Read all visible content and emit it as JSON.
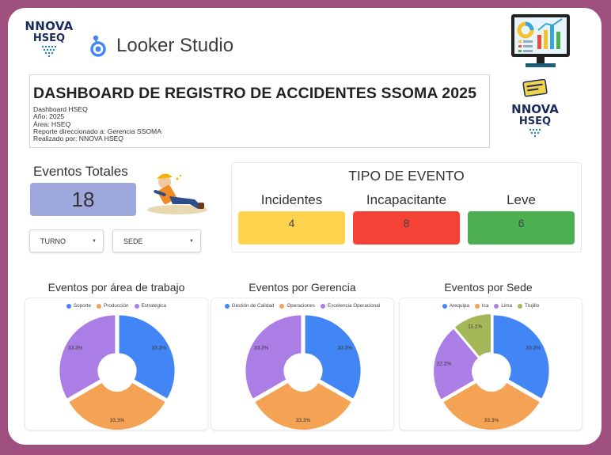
{
  "header": {
    "logo_small": {
      "line1": "NNOVA",
      "line2": "HSEQ"
    },
    "looker_label": "Looker Studio",
    "logo_big": {
      "line1": "NNOVA",
      "line2": "HSEQ"
    }
  },
  "title_box": {
    "title": "DASHBOARD DE REGISTRO DE ACCIDENTES SSOMA 2025",
    "lines": [
      "Dashboard HSEQ",
      "Año: 2025",
      "Área: HSEQ",
      "Reporte direccionado a: Gerencia SSOMA",
      "Realizado por: NNOVA HSEQ"
    ]
  },
  "eventos_totales": {
    "label": "Eventos Totales",
    "value": "18"
  },
  "filters": {
    "turno": "TURNO",
    "sede": "SEDE"
  },
  "tipo_evento": {
    "title": "TIPO DE EVENTO",
    "items": [
      {
        "label": "Incidentes",
        "value": "4",
        "color": "#fdd34d"
      },
      {
        "label": "Incapacitante",
        "value": "8",
        "color": "#f44336"
      },
      {
        "label": "Leve",
        "value": "6",
        "color": "#4caf50"
      }
    ]
  },
  "colors": {
    "blue": "#4285f4",
    "orange": "#f4a354",
    "purple": "#ab7ee6",
    "olive": "#a4b85a"
  },
  "chart_data": [
    {
      "type": "pie",
      "title": "Eventos por área de trabajo",
      "categories": [
        "Soporte",
        "Producción",
        "Estratégica"
      ],
      "values": [
        33.3,
        33.3,
        33.3
      ],
      "labels": [
        "33.3%",
        "33.3%",
        "33.3%"
      ],
      "colors": [
        "#4285f4",
        "#f4a354",
        "#ab7ee6"
      ],
      "legend": "top"
    },
    {
      "type": "pie",
      "title": "Eventos por Gerencia",
      "categories": [
        "Gestión de Calidad",
        "Operaciones",
        "Excelencia Operacional"
      ],
      "values": [
        33.3,
        33.3,
        33.3
      ],
      "labels": [
        "33.3%",
        "33.3%",
        "33.3%"
      ],
      "colors": [
        "#4285f4",
        "#f4a354",
        "#ab7ee6"
      ],
      "legend": "top"
    },
    {
      "type": "pie",
      "title": "Eventos por Sede",
      "categories": [
        "Arequipa",
        "Ica",
        "Lima",
        "Trujillo"
      ],
      "values": [
        33.3,
        33.3,
        22.2,
        11.1
      ],
      "labels": [
        "33.3%",
        "33.3%",
        "22.2%",
        "11.1%"
      ],
      "colors": [
        "#4285f4",
        "#f4a354",
        "#ab7ee6",
        "#a4b85a"
      ],
      "legend": "top"
    }
  ]
}
